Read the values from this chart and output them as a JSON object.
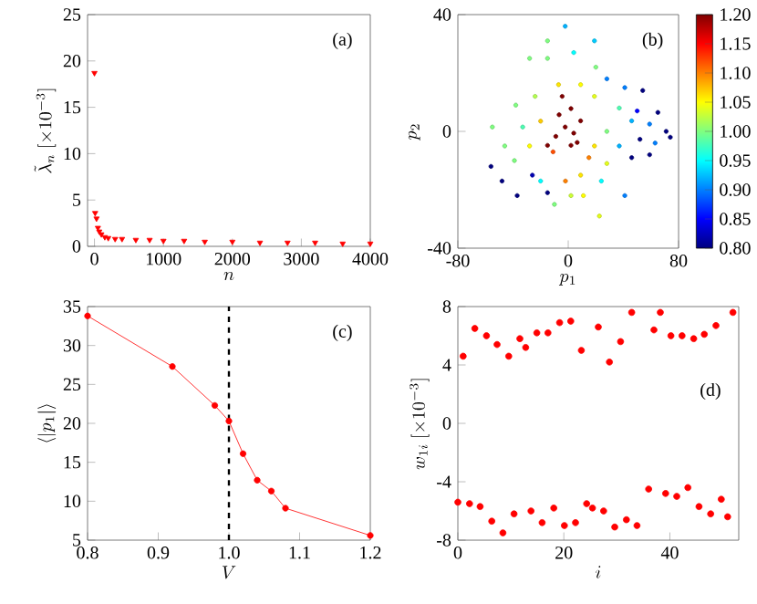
{
  "chart_data": [
    {
      "type": "scatter",
      "xlabel": "n",
      "ylabel": "\\tilde{\\lambda}_n\\ [\\times 10^{-3}]",
      "annotations": [
        "(a)"
      ],
      "marker": "triangle",
      "color": "#ff0000",
      "x": [
        0,
        10,
        30,
        50,
        70,
        100,
        150,
        200,
        300,
        400,
        600,
        800,
        1000,
        1300,
        1600,
        2000,
        2400,
        2800,
        3200,
        3600,
        4000
      ],
      "values": [
        18.7,
        3.6,
        3.0,
        2.0,
        1.6,
        1.3,
        1.0,
        0.9,
        0.8,
        0.8,
        0.7,
        0.7,
        0.6,
        0.6,
        0.5,
        0.5,
        0.4,
        0.4,
        0.4,
        0.3,
        0.3
      ],
      "xlim": [
        -100,
        4000
      ],
      "ylim": [
        0,
        25
      ],
      "xticks": [
        0,
        1000,
        2000,
        3000,
        4000
      ],
      "yticks": [
        0,
        5,
        10,
        15,
        20,
        25
      ]
    },
    {
      "type": "scatter",
      "xlabel": "p_1",
      "ylabel": "p_2",
      "annotations": [
        "(b)"
      ],
      "marker": "circle",
      "x": [
        -2.2,
        19,
        22.6,
        -56,
        -48,
        -37,
        74,
        71,
        65,
        54,
        41,
        -10,
        -55,
        -38,
        -28,
        -15,
        4,
        20,
        28,
        41,
        50,
        63,
        59,
        46,
        37,
        28,
        -20,
        -15,
        -2,
        9,
        11,
        2,
        -39,
        -28,
        -20,
        -24,
        -7,
        9,
        19,
        19,
        15,
        -11,
        -6.6,
        -2.2,
        4,
        2,
        -9,
        9,
        -4.4,
        2,
        -15,
        6.5,
        37,
        46,
        52,
        59,
        28,
        24,
        -46,
        -33,
        -15,
        -26
      ],
      "values": [
        36,
        31,
        -29,
        -12,
        -17,
        -22,
        -2,
        0,
        6.5,
        14,
        -22,
        -25,
        1.5,
        9,
        25,
        25,
        27,
        22,
        18,
        15,
        7,
        -4,
        -8,
        -9,
        -5,
        0,
        -17,
        -21,
        -17,
        -15,
        -22,
        -22,
        -10,
        -5,
        3.5,
        12,
        16,
        16,
        12,
        -5,
        -9,
        -7,
        5.7,
        1.5,
        -0.6,
        7.8,
        -1.7,
        3.6,
        12,
        -4.8,
        -4.8,
        -3.8,
        8,
        3.6,
        -2.7,
        2.5,
        -11,
        -17,
        -5,
        1.5,
        31,
        -15
      ],
      "cvalues": [
        0.92,
        0.93,
        1.04,
        0.8,
        0.8,
        0.8,
        0.8,
        0.8,
        0.8,
        0.8,
        0.9,
        1.0,
        1.0,
        1.0,
        1.0,
        1.0,
        0.95,
        1.0,
        0.9,
        0.9,
        0.85,
        0.9,
        0.8,
        0.8,
        0.92,
        1.0,
        0.95,
        0.8,
        1.1,
        1.06,
        1.05,
        1.03,
        1.0,
        1.05,
        1.07,
        1.02,
        1.06,
        1.05,
        1.04,
        1.06,
        1.1,
        1.12,
        1.2,
        1.2,
        1.2,
        1.2,
        1.2,
        1.2,
        1.2,
        1.2,
        1.2,
        1.2,
        0.98,
        0.92,
        0.8,
        0.9,
        1.04,
        0.95,
        1.0,
        0.98,
        1.0,
        0.82
      ],
      "xlim": [
        -80,
        80
      ],
      "ylim": [
        -40,
        40
      ],
      "xticks": [
        -80,
        0,
        80
      ],
      "yticks": [
        -40,
        0,
        40
      ],
      "clim": [
        0.8,
        1.2
      ],
      "cticks": [
        {
          "value": 0.8,
          "label": "0.80"
        },
        {
          "value": 0.85,
          "label": "0.85"
        },
        {
          "value": 0.9,
          "label": "0.90"
        },
        {
          "value": 0.95,
          "label": "0.95"
        },
        {
          "value": 1.0,
          "label": "1.00"
        },
        {
          "value": 1.05,
          "label": "1.05"
        },
        {
          "value": 1.1,
          "label": "1.10"
        },
        {
          "value": 1.15,
          "label": "1.15"
        },
        {
          "value": 1.2,
          "label": "1.20"
        }
      ]
    },
    {
      "type": "line",
      "xlabel": "V",
      "ylabel": "\\langle |p_1| \\rangle",
      "annotations": [
        "(c)"
      ],
      "marker": "circle",
      "line_style": "solid",
      "color": "#ff0000",
      "x": [
        0.8,
        0.92,
        0.98,
        1.0,
        1.02,
        1.04,
        1.06,
        1.08,
        1.2
      ],
      "values": [
        33.8,
        27.3,
        22.3,
        20.3,
        16.1,
        12.7,
        11.3,
        9.1,
        5.6
      ],
      "xlim": [
        0.8,
        1.2
      ],
      "ylim": [
        5,
        35
      ],
      "xticks": [
        0.8,
        0.9,
        {
          "value": 1.0,
          "label": "1.0"
        },
        1.1,
        1.2
      ],
      "yticks": [
        5,
        10,
        15,
        20,
        25,
        30,
        35
      ],
      "ref_lines": [
        {
          "axis": "x",
          "value": 1.0,
          "color": "#000000",
          "line_style": "dashed"
        }
      ]
    },
    {
      "type": "scatter",
      "xlabel": "i",
      "ylabel": "w_{1i}\\ [\\times 10^{-3}]",
      "annotations": [
        "(d)"
      ],
      "marker": "circle",
      "color": "#ff0000",
      "x": [
        0,
        1.0,
        2.2,
        3.2,
        4.2,
        5.4,
        6.4,
        7.4,
        8.5,
        9.6,
        10.6,
        11.7,
        12.8,
        13.8,
        14.9,
        15.9,
        17.0,
        18.1,
        19.2,
        20.1,
        21.3,
        22.2,
        23.3,
        24.3,
        25.4,
        26.5,
        27.5,
        28.6,
        29.6,
        30.7,
        31.8,
        32.8,
        33.8,
        36.0,
        37.0,
        38.2,
        39.2,
        40.2,
        41.3,
        42.3,
        43.4,
        44.5,
        45.5,
        46.5,
        47.7,
        48.7,
        49.7,
        50.9,
        51.9
      ],
      "values": [
        -5.4,
        4.6,
        -5.5,
        6.5,
        -5.7,
        6.0,
        -6.7,
        5.4,
        -7.5,
        4.6,
        -6.2,
        5.8,
        5.2,
        -6.0,
        6.2,
        -6.8,
        6.2,
        -5.8,
        6.9,
        -7.0,
        7.0,
        -6.8,
        5.0,
        -5.5,
        -5.8,
        6.6,
        -6.0,
        4.2,
        -7.1,
        5.6,
        -6.6,
        7.6,
        -7.0,
        -4.5,
        6.4,
        7.6,
        -4.8,
        6.0,
        -5.0,
        6.0,
        -4.4,
        5.8,
        -5.7,
        6.1,
        -6.2,
        6.7,
        -5.2,
        -6.4,
        7.6
      ],
      "xlim": [
        0,
        53
      ],
      "ylim": [
        -8,
        8
      ],
      "xticks": [
        0,
        20,
        40
      ],
      "yticks": [
        -8,
        -4,
        0,
        4,
        8
      ]
    }
  ]
}
